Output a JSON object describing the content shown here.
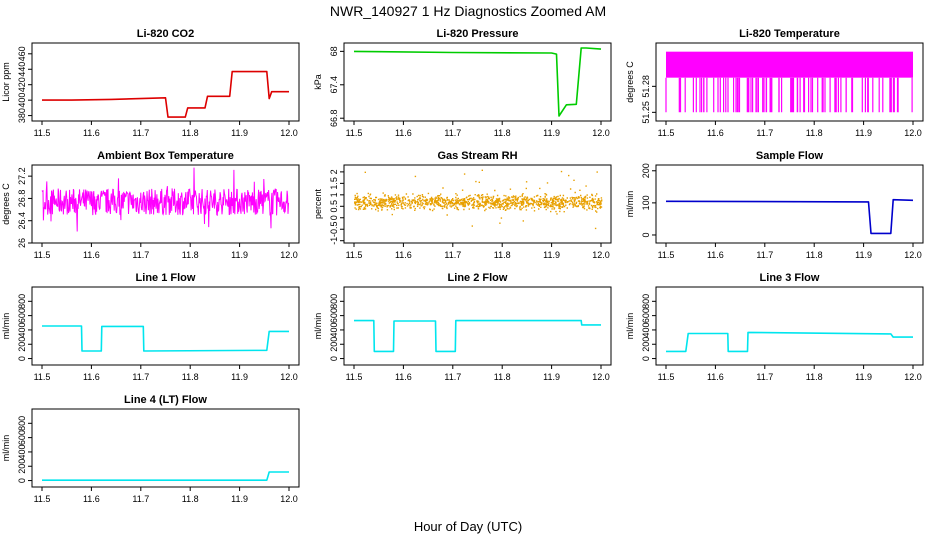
{
  "figure": {
    "title": "NWR_140927  1 Hz Diagnostics Zoomed AM",
    "xlabel": "Hour of Day (UTC)"
  },
  "chart_data": [
    {
      "id": "co2",
      "type": "line",
      "title": "Li-820 CO2",
      "ylabel": "Licor ppm",
      "color": "#dd0000",
      "xlim": [
        11.5,
        12.0
      ],
      "ylim": [
        373,
        474
      ],
      "xticks": [
        "11.5",
        "11.6",
        "11.7",
        "11.8",
        "11.9",
        "12.0"
      ],
      "yticks": [
        380,
        400,
        420,
        440,
        460
      ],
      "x": [
        11.5,
        11.56,
        11.64,
        11.75,
        11.755,
        11.79,
        11.795,
        11.83,
        11.835,
        11.88,
        11.885,
        11.955,
        11.96,
        11.965,
        12.0
      ],
      "y": [
        400,
        400,
        401,
        403,
        378,
        378,
        390,
        390,
        405,
        405,
        437,
        437,
        402,
        411,
        411
      ]
    },
    {
      "id": "pressure",
      "type": "line",
      "title": "Li-820 Pressure",
      "ylabel": "kPa",
      "color": "#00cc00",
      "xlim": [
        11.5,
        12.0
      ],
      "ylim": [
        66.75,
        68.15
      ],
      "xticks": [
        "11.5",
        "11.6",
        "11.7",
        "11.8",
        "11.9",
        "12.0"
      ],
      "yticks": [
        66.8,
        67.4,
        68.0
      ],
      "x": [
        11.5,
        11.7,
        11.9,
        11.91,
        11.915,
        11.93,
        11.95,
        11.96,
        11.97,
        12.0
      ],
      "y": [
        68.0,
        67.98,
        67.97,
        67.95,
        66.84,
        67.04,
        67.05,
        68.06,
        68.06,
        68.04
      ]
    },
    {
      "id": "temp",
      "type": "line",
      "title": "Li-820 Temperature",
      "ylabel": "degrees C",
      "color": "#ff00ff",
      "xlim": [
        11.5,
        12.0
      ],
      "ylim": [
        51.24,
        51.33
      ],
      "xticks": [
        "11.5",
        "11.6",
        "11.7",
        "11.8",
        "11.9",
        "12.0"
      ],
      "yticks": [
        51.25,
        51.28
      ],
      "x": [
        11.5,
        12.0
      ],
      "y": [
        51.29,
        51.29
      ],
      "band": [
        51.25,
        51.32
      ],
      "noise": "flicker"
    },
    {
      "id": "boxtemp",
      "type": "line",
      "title": "Ambient Box Temperature",
      "ylabel": "degrees C",
      "color": "#ff00ff",
      "xlim": [
        11.5,
        12.0
      ],
      "ylim": [
        26.0,
        27.4
      ],
      "xticks": [
        "11.5",
        "11.6",
        "11.7",
        "11.8",
        "11.9",
        "12.0"
      ],
      "yticks": [
        26.0,
        26.4,
        26.8,
        27.2
      ],
      "x": [
        11.5,
        12.0
      ],
      "y": [
        26.72,
        26.72
      ],
      "band": [
        26.5,
        26.98
      ],
      "noise": "noisy"
    },
    {
      "id": "rh",
      "type": "scatter",
      "title": "Gas Stream RH",
      "ylabel": "percent",
      "color": "#e8a000",
      "xlim": [
        11.5,
        12.0
      ],
      "ylim": [
        -1.1,
        2.3
      ],
      "xticks": [
        "11.5",
        "11.6",
        "11.7",
        "11.8",
        "11.9",
        "12.0"
      ],
      "yticks": [
        -1.0,
        -0.5,
        0.0,
        0.5,
        1.0,
        1.5,
        2.0
      ],
      "x": [
        11.5,
        12.0
      ],
      "y": [
        0.65,
        0.65
      ],
      "band": [
        0.2,
        1.15
      ],
      "noise": "dots"
    },
    {
      "id": "sample",
      "type": "line",
      "title": "Sample Flow",
      "ylabel": "ml/min",
      "color": "#0000cc",
      "xlim": [
        11.5,
        12.0
      ],
      "ylim": [
        -25,
        218
      ],
      "xticks": [
        "11.5",
        "11.6",
        "11.7",
        "11.8",
        "11.9",
        "12.0"
      ],
      "yticks": [
        0,
        100,
        200
      ],
      "x": [
        11.5,
        11.91,
        11.915,
        11.955,
        11.96,
        12.0
      ],
      "y": [
        105,
        103,
        5,
        5,
        110,
        108
      ]
    },
    {
      "id": "line1",
      "type": "line",
      "title": "Line 1 Flow",
      "ylabel": "ml/min",
      "color": "#00e5ee",
      "xlim": [
        11.5,
        12.0
      ],
      "ylim": [
        -90,
        1000
      ],
      "xticks": [
        "11.5",
        "11.6",
        "11.7",
        "11.8",
        "11.9",
        "12.0"
      ],
      "yticks": [
        0,
        200,
        400,
        600,
        800
      ],
      "x": [
        11.5,
        11.58,
        11.581,
        11.62,
        11.621,
        11.705,
        11.706,
        11.955,
        11.96,
        12.0
      ],
      "y": [
        455,
        455,
        105,
        105,
        450,
        450,
        105,
        115,
        380,
        380
      ]
    },
    {
      "id": "line2",
      "type": "line",
      "title": "Line 2 Flow",
      "ylabel": "ml/min",
      "color": "#00e5ee",
      "xlim": [
        11.5,
        12.0
      ],
      "ylim": [
        -90,
        1000
      ],
      "xticks": [
        "11.5",
        "11.6",
        "11.7",
        "11.8",
        "11.9",
        "12.0"
      ],
      "yticks": [
        0,
        200,
        400,
        600,
        800
      ],
      "x": [
        11.5,
        11.54,
        11.541,
        11.58,
        11.581,
        11.665,
        11.666,
        11.705,
        11.706,
        11.96,
        11.961,
        12.0
      ],
      "y": [
        530,
        530,
        100,
        100,
        525,
        525,
        100,
        100,
        530,
        530,
        470,
        470
      ]
    },
    {
      "id": "line3",
      "type": "line",
      "title": "Line 3 Flow",
      "ylabel": "ml/min",
      "color": "#00e5ee",
      "xlim": [
        11.5,
        12.0
      ],
      "ylim": [
        -90,
        1000
      ],
      "xticks": [
        "11.5",
        "11.6",
        "11.7",
        "11.8",
        "11.9",
        "12.0"
      ],
      "yticks": [
        0,
        200,
        400,
        600,
        800
      ],
      "x": [
        11.5,
        11.54,
        11.545,
        11.625,
        11.626,
        11.665,
        11.666,
        11.955,
        11.96,
        12.0
      ],
      "y": [
        100,
        100,
        350,
        350,
        100,
        100,
        365,
        345,
        300,
        300
      ]
    },
    {
      "id": "line4",
      "type": "line",
      "title": "Line 4 (LT) Flow",
      "ylabel": "ml/min",
      "color": "#00e5ee",
      "xlim": [
        11.5,
        12.0
      ],
      "ylim": [
        -90,
        1000
      ],
      "xticks": [
        "11.5",
        "11.6",
        "11.7",
        "11.8",
        "11.9",
        "12.0"
      ],
      "yticks": [
        0,
        200,
        400,
        600,
        800
      ],
      "x": [
        11.5,
        11.955,
        11.96,
        12.0
      ],
      "y": [
        5,
        5,
        120,
        120
      ]
    }
  ]
}
